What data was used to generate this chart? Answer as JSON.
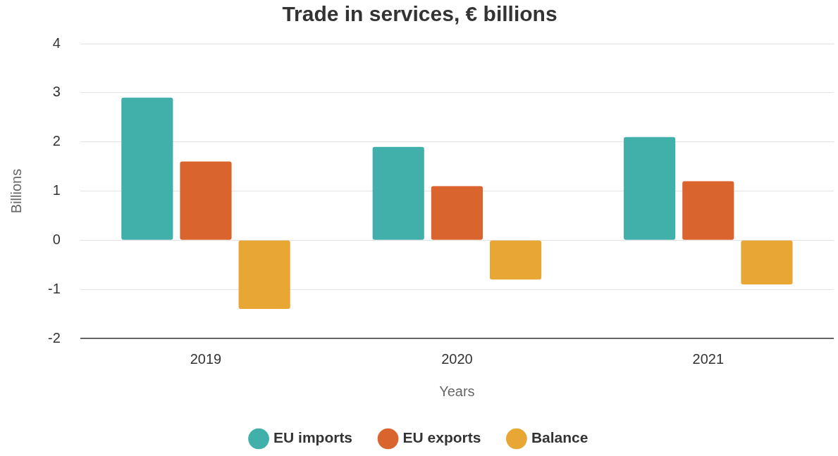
{
  "chart_data": {
    "type": "bar",
    "title": "Trade in services, € billions",
    "xlabel": "Years",
    "ylabel": "Billions",
    "categories": [
      "2019",
      "2020",
      "2021"
    ],
    "series": [
      {
        "name": "EU imports",
        "color": "#41b0aa",
        "values": [
          2.9,
          1.9,
          2.1
        ]
      },
      {
        "name": "EU exports",
        "color": "#d9642e",
        "values": [
          1.6,
          1.1,
          1.2
        ]
      },
      {
        "name": "Balance",
        "color": "#e8a735",
        "values": [
          -1.4,
          -0.8,
          -0.9
        ]
      }
    ],
    "ylim": [
      -2,
      4
    ],
    "yticks": [
      -2,
      -1,
      0,
      1,
      2,
      3,
      4
    ],
    "grid": "y",
    "legend": "bottom"
  }
}
